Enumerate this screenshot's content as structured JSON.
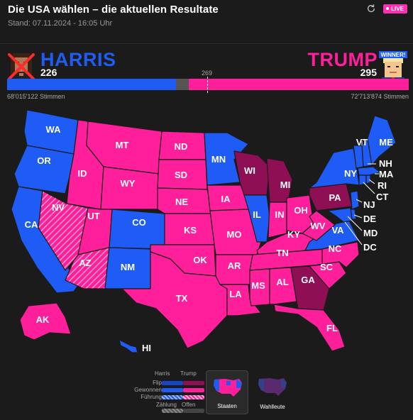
{
  "header": {
    "title": "Die USA wählen – die aktuellen Resultate",
    "stand": "Stand: 07.11.2024 - 16:05 Uhr",
    "live_label": "LIVE"
  },
  "candidates": {
    "harris": {
      "name": "HARRIS",
      "electoral_votes": "226",
      "popular_votes": "68'015'122 Stimmen",
      "color": "#1f5cf5"
    },
    "trump": {
      "name": "TRUMP",
      "electoral_votes": "295",
      "popular_votes": "72'713'874 Stimmen",
      "color": "#ff1f9a",
      "badge": "WINNER!"
    }
  },
  "bar": {
    "majority_label": "269",
    "total": 538,
    "harris_ev": 226,
    "trump_ev": 295
  },
  "colors": {
    "dem_won": "#1f5cf5",
    "rep_won": "#ff1f9a",
    "dem_flip": "#1546c7",
    "rep_flip": "#8f0f55",
    "counting": "#555555",
    "background": "#1b1b1b"
  },
  "map": {
    "labels": {
      "WA": "WA",
      "OR": "OR",
      "CA": "CA",
      "ID": "ID",
      "NV": "NV",
      "MT": "MT",
      "WY": "WY",
      "UT": "UT",
      "AZ": "AZ",
      "CO": "CO",
      "NM": "NM",
      "ND": "ND",
      "SD": "SD",
      "NE": "NE",
      "KS": "KS",
      "OK": "OK",
      "TX": "TX",
      "MN": "MN",
      "IA": "IA",
      "MO": "MO",
      "AR": "AR",
      "LA": "LA",
      "WI": "WI",
      "IL": "IL",
      "MI": "MI",
      "IN": "IN",
      "OH": "OH",
      "KY": "KY",
      "TN": "TN",
      "MS": "MS",
      "AL": "AL",
      "GA": "GA",
      "FL": "FL",
      "SC": "SC",
      "NC": "NC",
      "VA": "VA",
      "WV": "WV",
      "PA": "PA",
      "NY": "NY",
      "VT": "VT",
      "ME": "ME",
      "NH": "NH",
      "MA": "MA",
      "RI": "RI",
      "CT": "CT",
      "NJ": "NJ",
      "DE": "DE",
      "MD": "MD",
      "DC": "DC",
      "AK": "AK",
      "HI": "HI"
    }
  },
  "legend": {
    "col_harris": "Harris",
    "col_trump": "Trump",
    "flip": "Flip",
    "won": "Gewonnen",
    "lead": "Führung",
    "counting": "Zählung",
    "open": "Offen"
  },
  "tabs": {
    "states": "Staaten",
    "electors": "Wahlleute"
  }
}
